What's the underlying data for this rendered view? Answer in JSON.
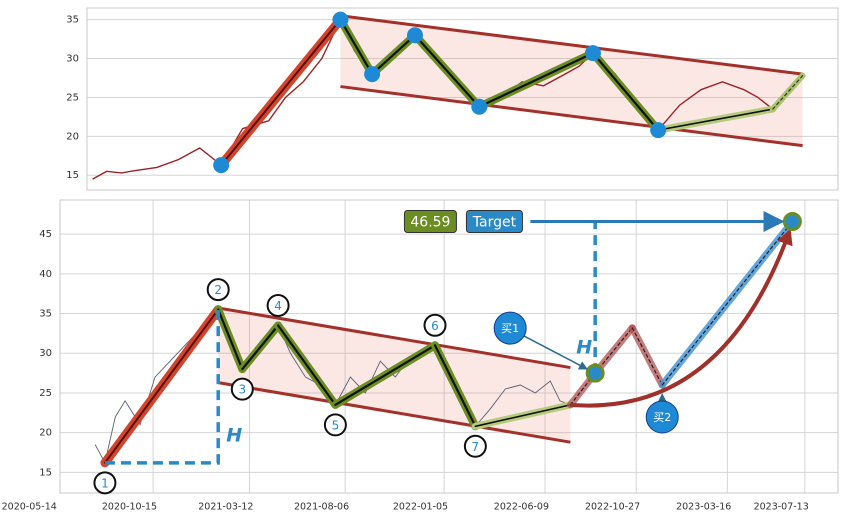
{
  "chart_data": [
    {
      "type": "line",
      "x": [
        "2020-07-18",
        "2020-08-02",
        "2020-08-18",
        "2020-09-02",
        "2020-09-25",
        "2020-10-18",
        "2020-11-10",
        "2020-12-03",
        "2020-12-26",
        "2021-01-23",
        "2021-02-10",
        "2021-03-01",
        "2021-03-21",
        "2021-04-10",
        "2021-04-25",
        "2021-05-14",
        "2021-06-06",
        "2021-06-29",
        "2021-07-22",
        "2021-08-14",
        "2021-09-06",
        "2021-09-29",
        "2021-10-22",
        "2021-11-14",
        "2021-12-07",
        "2021-12-22",
        "2022-01-06",
        "2022-01-30",
        "2022-02-22",
        "2022-03-17",
        "2022-04-09",
        "2022-05-02",
        "2022-05-25",
        "2022-06-17",
        "2022-07-02",
        "2022-07-18"
      ],
      "series": [
        {
          "color": "#9b2226",
          "values": [
            14.5,
            15.5,
            15.3,
            15.6,
            16,
            17,
            18.5,
            16.3,
            21,
            22,
            25,
            27,
            30,
            35,
            31,
            28,
            30,
            33,
            30,
            27,
            23.8,
            25,
            27,
            26.5,
            28,
            29,
            30.7,
            28,
            24,
            20.8,
            24,
            26,
            27,
            26,
            25,
            23.5
          ]
        }
      ],
      "xlim": [
        "2020-07-12",
        "2022-09-26"
      ],
      "ylim": [
        13.1,
        36.5
      ],
      "yticks": [
        15,
        20,
        25,
        30,
        35
      ],
      "grid": true,
      "zigzag": {
        "x": [
          "2020-12-03",
          "2021-04-10",
          "2021-05-14",
          "2021-06-29",
          "2021-09-06",
          "2022-01-06",
          "2022-03-17",
          "2022-07-18"
        ],
        "values": [
          16.3,
          35,
          28,
          33,
          23.8,
          30.7,
          20.8,
          23.5
        ]
      },
      "projection": {
        "x": [
          "2022-07-18",
          "2022-08-19"
        ],
        "values": [
          23.5,
          27.8
        ]
      },
      "channel": {
        "x": [
          "2021-04-10",
          "2022-08-19"
        ],
        "upper": [
          35.5,
          28
        ],
        "lower": [
          26.4,
          18.8
        ]
      }
    },
    {
      "type": "line",
      "x": [
        "2020-07-18",
        "2020-08-02",
        "2020-08-18",
        "2020-09-02",
        "2020-09-25",
        "2020-10-18",
        "2020-11-10",
        "2020-12-03",
        "2020-12-26",
        "2021-01-23",
        "2021-02-10",
        "2021-03-01",
        "2021-03-21",
        "2021-04-10",
        "2021-04-25",
        "2021-05-14",
        "2021-06-06",
        "2021-06-29",
        "2021-07-22",
        "2021-08-14",
        "2021-09-06",
        "2021-09-29",
        "2021-10-22",
        "2021-11-14",
        "2021-12-07",
        "2021-12-22",
        "2022-01-06",
        "2022-01-30",
        "2022-02-22",
        "2022-03-17",
        "2022-04-09",
        "2022-05-02",
        "2022-05-25",
        "2022-06-17",
        "2022-07-02",
        "2022-07-18"
      ],
      "series": [
        {
          "color": "#5a5f75",
          "values": [
            18.5,
            16.2,
            22,
            24,
            21,
            27,
            29,
            31,
            33,
            35.5,
            31,
            28,
            30,
            32,
            33.5,
            30,
            27,
            26,
            23.5,
            27,
            25,
            29,
            27,
            29.5,
            30,
            31,
            29,
            25,
            20.8,
            23,
            25.5,
            26,
            25,
            26.5,
            24,
            23.5
          ]
        }
      ],
      "xlim": [
        "2020-05-25",
        "2023-09-02"
      ],
      "ylim": [
        12.4,
        49.3
      ],
      "xticks": [
        "2020-05-14",
        "2020-10-15",
        "2021-03-12",
        "2021-08-06",
        "2022-01-05",
        "2022-06-09",
        "2022-10-27",
        "2023-03-16",
        "2023-07-13"
      ],
      "yticks": [
        15,
        20,
        25,
        30,
        35,
        40,
        45
      ],
      "grid": true,
      "zigzag": {
        "x": [
          "2020-08-02",
          "2021-01-23",
          "2021-03-01",
          "2021-04-25",
          "2021-07-22",
          "2021-12-22",
          "2022-02-22",
          "2022-07-18"
        ],
        "values": [
          16.2,
          35.5,
          28,
          33.5,
          23.5,
          31,
          20.8,
          23.5
        ],
        "labels": [
          "1",
          "2",
          "3",
          "4",
          "5",
          "6",
          "7",
          null
        ]
      },
      "channel": {
        "x": [
          "2021-01-23",
          "2022-07-18"
        ],
        "upper": [
          35.7,
          28.2
        ],
        "lower": [
          26.3,
          18.8
        ]
      },
      "projection": {
        "x": [
          "2022-07-18",
          "2022-08-25",
          "2022-10-21",
          "2022-12-06",
          "2023-06-24"
        ],
        "values": [
          23.5,
          27.5,
          33.2,
          26,
          46.59
        ]
      },
      "buys": [
        {
          "label": "买1",
          "x": "2022-08-25",
          "value": 27.5
        },
        {
          "label": "买2",
          "x": "2022-12-06",
          "value": 26
        }
      ],
      "target": {
        "value": 46.59,
        "label": "Target"
      },
      "height_label": "H"
    }
  ]
}
